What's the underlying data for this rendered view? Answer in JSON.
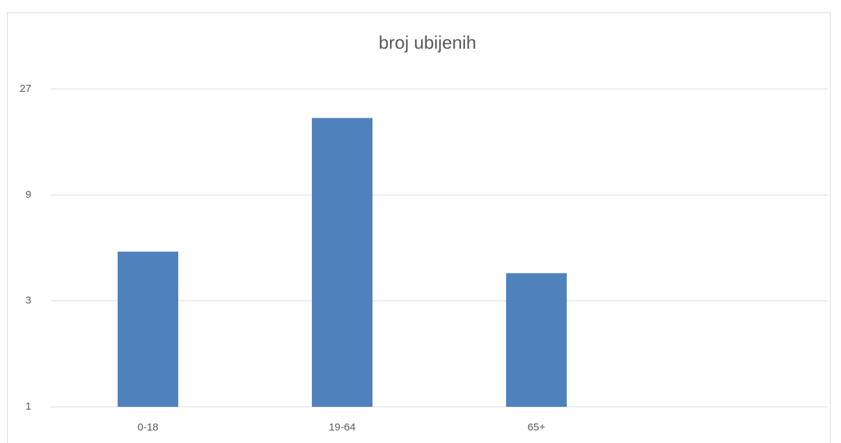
{
  "chart_data": {
    "type": "bar",
    "title": "broj ubijenih",
    "categories": [
      "0-18",
      "19-64",
      "65+",
      null
    ],
    "values": [
      5,
      20,
      4,
      null
    ],
    "color": "#4f81bd",
    "yscale": "log",
    "ylim": [
      1,
      27
    ],
    "yticks": [
      1,
      3,
      9,
      27
    ],
    "grid": true
  }
}
